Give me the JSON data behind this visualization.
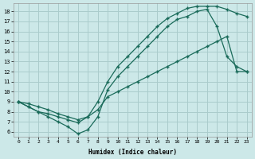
{
  "xlabel": "Humidex (Indice chaleur)",
  "bg_color": "#cce8e8",
  "grid_color": "#aacccc",
  "line_color": "#1a6b5a",
  "xlim": [
    -0.5,
    23.5
  ],
  "ylim": [
    5.5,
    18.8
  ],
  "xticks": [
    0,
    1,
    2,
    3,
    4,
    5,
    6,
    7,
    8,
    9,
    10,
    11,
    12,
    13,
    14,
    15,
    16,
    17,
    18,
    19,
    20,
    21,
    22,
    23
  ],
  "yticks": [
    6,
    7,
    8,
    9,
    10,
    11,
    12,
    13,
    14,
    15,
    16,
    17,
    18
  ],
  "line1_x": [
    0,
    1,
    2,
    3,
    4,
    5,
    6,
    7,
    8,
    9,
    10,
    11,
    12,
    13,
    14,
    15,
    16,
    17,
    18,
    19,
    20,
    21,
    22,
    23
  ],
  "line1_y": [
    9.0,
    8.5,
    8.0,
    7.5,
    7.0,
    6.5,
    5.8,
    6.2,
    7.5,
    10.2,
    11.5,
    12.5,
    13.5,
    14.5,
    15.5,
    16.5,
    17.2,
    17.5,
    18.0,
    18.2,
    16.5,
    13.5,
    12.5,
    12.0
  ],
  "line2_x": [
    0,
    1,
    2,
    3,
    4,
    5,
    6,
    7,
    8,
    9,
    10,
    11,
    12,
    13,
    14,
    15,
    16,
    17,
    18,
    19,
    20,
    21,
    22,
    23
  ],
  "line2_y": [
    9.0,
    8.5,
    8.0,
    7.8,
    7.5,
    7.2,
    6.9,
    7.5,
    9.0,
    11.0,
    12.5,
    13.5,
    14.5,
    15.5,
    16.5,
    17.3,
    17.8,
    18.3,
    18.5,
    18.5,
    18.5,
    18.2,
    17.8,
    17.5
  ],
  "line3_x": [
    0,
    1,
    2,
    3,
    4,
    5,
    6,
    7,
    8,
    9,
    10,
    11,
    12,
    13,
    14,
    15,
    16,
    17,
    18,
    19,
    20,
    21,
    22,
    23
  ],
  "line3_y": [
    9.0,
    8.8,
    8.5,
    8.2,
    7.8,
    7.5,
    7.2,
    7.5,
    8.2,
    9.5,
    10.0,
    10.5,
    11.0,
    11.5,
    12.0,
    12.5,
    13.0,
    13.5,
    14.0,
    14.5,
    15.0,
    15.5,
    12.0,
    12.0
  ]
}
